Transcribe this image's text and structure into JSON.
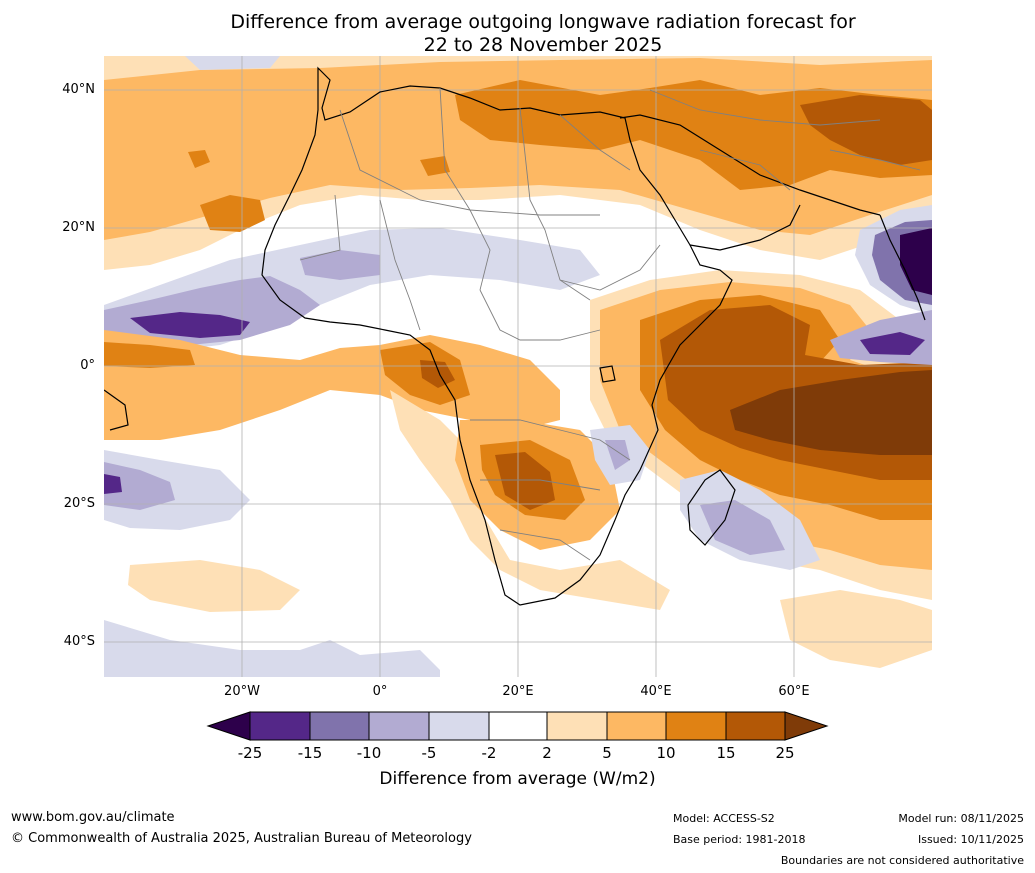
{
  "title": {
    "line1": "Difference from average outgoing longwave radiation forecast for",
    "line2": "22 to 28 November 2025"
  },
  "axes": {
    "lat_labels": [
      "40°N",
      "20°N",
      "0°",
      "20°S",
      "40°S"
    ],
    "lon_labels": [
      "20°W",
      "0°",
      "20°E",
      "40°E",
      "60°E"
    ]
  },
  "colorbar": {
    "title": "Difference from average (W/m2)",
    "ticks": [
      "-25",
      "-15",
      "-10",
      "-5",
      "-2",
      "2",
      "5",
      "10",
      "15",
      "25"
    ],
    "colors": {
      "below_min": "#2d004b",
      "c1": "#542788",
      "c2": "#8073ac",
      "c3": "#b2abd2",
      "c4": "#d8daeb",
      "c5": "#ffffff",
      "c6": "#fee0b6",
      "c7": "#fdb863",
      "c8": "#e08214",
      "c9": "#b35806",
      "above_max": "#7f3b08"
    }
  },
  "footer": {
    "website": "www.bom.gov.au/climate",
    "copyright": "© Commonwealth of Australia 2025, Australian Bureau of Meteorology",
    "model": "Model: ACCESS-S2",
    "base_period": "Base period: 1981-2018",
    "model_run": "Model run: 08/11/2025",
    "issued": "Issued: 10/11/2025",
    "disclaimer": "Boundaries are not considered authoritative"
  }
}
